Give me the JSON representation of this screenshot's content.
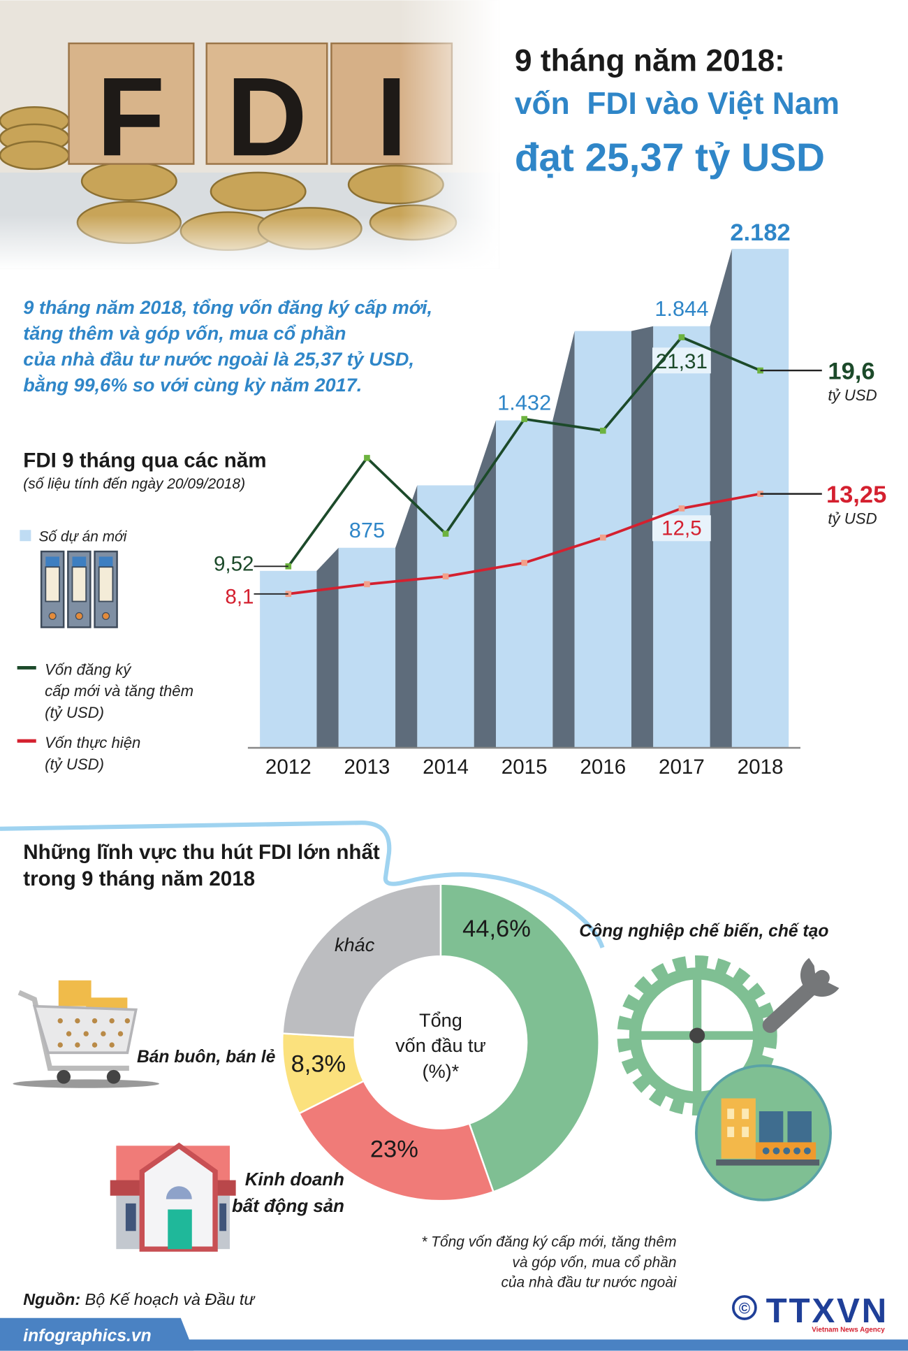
{
  "header": {
    "photo_text": "FDI",
    "title_line1": "9 tháng năm 2018:",
    "title_line2": "vốn  FDI vào Việt Nam",
    "title_line3": "đạt 25,37 tỷ USD"
  },
  "intro": [
    "9 tháng năm 2018, tổng vốn đăng ký cấp mới,",
    "tăng thêm và góp vốn, mua cổ phần",
    "của nhà đầu tư nước ngoài là 25,37 tỷ USD,",
    "bằng 99,6% so với cùng kỳ năm 2017."
  ],
  "colors": {
    "accent_blue": "#2f86c8",
    "bar_light": "#bfdcf3",
    "bar_side": "#5e6c7b",
    "registered_line": "#1c4a2a",
    "registered_marker": "#6db33f",
    "disbursed_line": "#d4202f",
    "disbursed_marker": "#f2a08a",
    "pie_manufacturing": "#7fbf93",
    "pie_real_estate": "#f07b78",
    "pie_retail": "#fbe17d",
    "pie_other": "#bcbdc0"
  },
  "chart_data": [
    {
      "type": "bar+line",
      "title": "FDI 9 tháng qua các năm",
      "subtitle": "(số liệu tính đến ngày 20/09/2018)",
      "categories": [
        "2012",
        "2013",
        "2014",
        "2015",
        "2016",
        "2017",
        "2018"
      ],
      "bars": {
        "name": "Số dự án mới",
        "values": [
          774,
          875,
          1148,
          1432,
          1823,
          1844,
          2182
        ],
        "labels": [
          null,
          "875",
          null,
          "1.432",
          null,
          "1.844",
          "2.182"
        ]
      },
      "series": [
        {
          "name_lines": [
            "Vốn đăng ký",
            "cấp mới và tăng thêm",
            "(tỷ USD)"
          ],
          "values": [
            9.52,
            15.1,
            11.2,
            17.1,
            16.5,
            21.31,
            19.6
          ],
          "labels": [
            "9,52",
            null,
            null,
            null,
            null,
            "21,31",
            "19,6"
          ],
          "end_unit": "tỷ USD"
        },
        {
          "name_lines": [
            "Vốn thực hiện",
            "(tỷ USD)"
          ],
          "values": [
            8.1,
            8.6,
            9.0,
            9.7,
            11.0,
            12.5,
            13.25
          ],
          "labels": [
            "8,1",
            null,
            null,
            null,
            null,
            "12,5",
            "13,25"
          ],
          "end_unit": "tỷ USD"
        }
      ]
    },
    {
      "type": "pie",
      "title_lines": [
        "Những lĩnh vực thu hút FDI lớn nhất",
        "trong 9 tháng năm 2018"
      ],
      "center_lines": [
        "Tổng",
        "vốn đầu tư",
        "(%)*"
      ],
      "slices": [
        {
          "category": "Công nghiệp chế biến, chế tạo",
          "value": 44.6,
          "label": "44,6%"
        },
        {
          "category_lines": [
            "Kinh doanh",
            "bất động sản"
          ],
          "value": 23,
          "label": "23%"
        },
        {
          "category": "Bán buôn, bán lẻ",
          "value": 8.3,
          "label": "8,3%"
        },
        {
          "category": "khác",
          "value": 24.1,
          "label": "khác"
        }
      ],
      "footnote": [
        "* Tổng vốn đăng ký cấp mới, tăng thêm",
        "và góp vốn, mua cổ phần",
        "của nhà đầu tư nước ngoài"
      ]
    }
  ],
  "icons": [
    "fdi-photo",
    "binder-icon",
    "cart-icon",
    "house-icon",
    "gear-icon",
    "wrench-icon",
    "factory-icon"
  ],
  "footer": {
    "source_label": "Nguồn:",
    "source_value": " Bộ Kế hoạch và Đầu tư",
    "site": "infographics.vn",
    "copyright": "©",
    "logo": "TTXVN",
    "logo_sub": "Vietnam News Agency"
  }
}
